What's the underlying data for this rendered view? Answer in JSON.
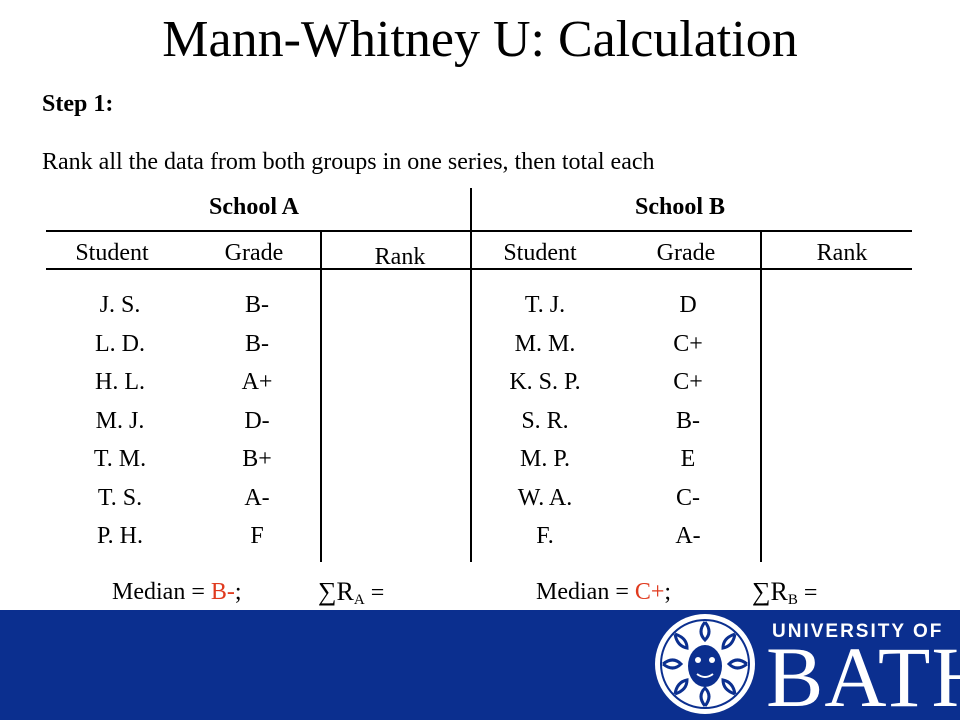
{
  "title": "Mann-Whitney U: Calculation",
  "step_label": "Step 1:",
  "instruction": "Rank all the data from both groups in one series, then total each",
  "school_a": {
    "name": "School A",
    "headers": {
      "student": "Student",
      "grade": "Grade",
      "rank": "Rank"
    },
    "students": [
      "J. S.",
      "L. D.",
      "H. L.",
      "M. J.",
      "T. M.",
      "T. S.",
      "P. H."
    ],
    "grades": [
      "B-",
      "B-",
      "A+",
      "D-",
      "B+",
      "A-",
      "F"
    ],
    "median_label": "Median = ",
    "median_value": "B-",
    "median_suffix": ";",
    "sum_symbol": "∑R",
    "sum_subscript": "A",
    "sum_equals": " ="
  },
  "school_b": {
    "name": "School B",
    "headers": {
      "student": "Student",
      "grade": "Grade",
      "rank": "Rank"
    },
    "students": [
      "T. J.",
      "M. M.",
      "K. S. P.",
      "S.  R.",
      "M.  P.",
      "W. A.",
      "F."
    ],
    "grades": [
      "D",
      "C+",
      "C+",
      "B-",
      "E",
      "C-",
      "A-"
    ],
    "median_label": "Median = ",
    "median_value": "C+",
    "median_suffix": ";",
    "sum_symbol": "∑R",
    "sum_subscript": "B",
    "sum_equals": " ="
  },
  "footer": {
    "logo_top": "UNIVERSITY OF",
    "logo_main": "BATH",
    "background_color": "#0b2f8f",
    "accent_color": "#e03a1e"
  }
}
